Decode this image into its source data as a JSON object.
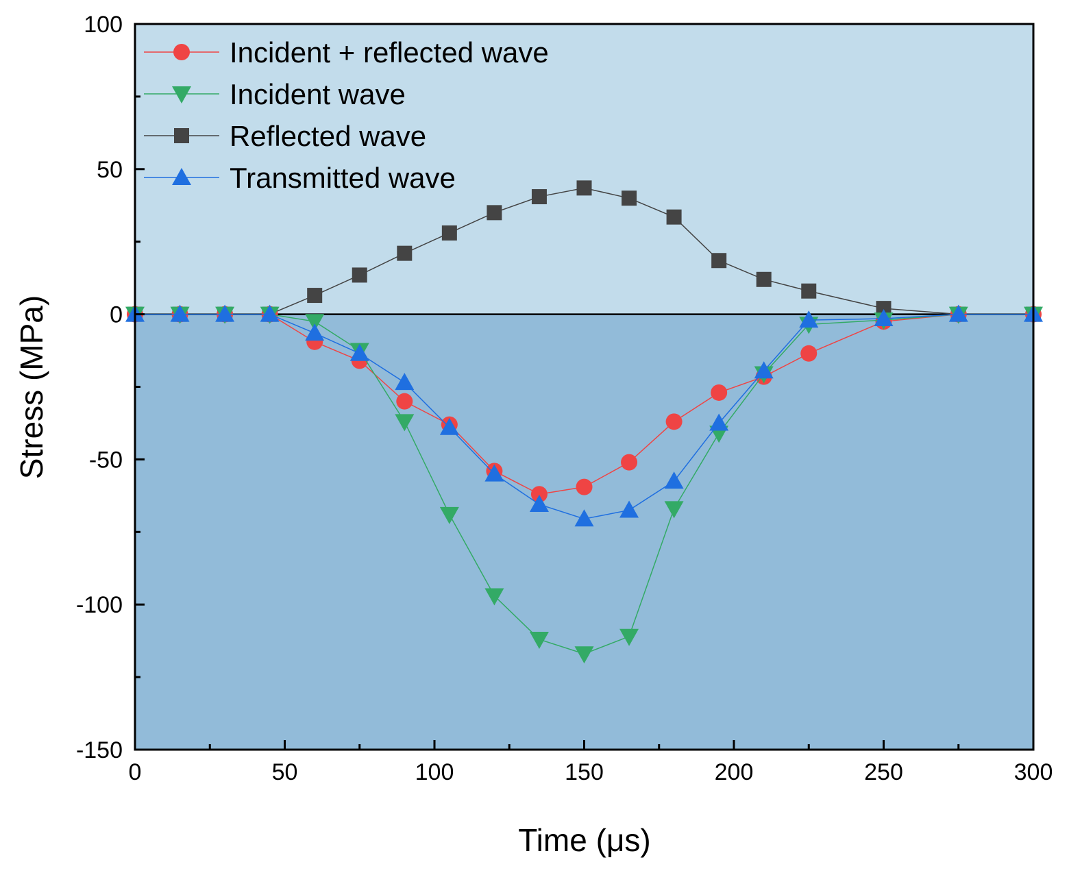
{
  "chart_data": {
    "type": "line",
    "title": "",
    "xlabel": "Time (μs)",
    "ylabel": "Stress (MPa)",
    "xlim": [
      0,
      300
    ],
    "ylim": [
      -150,
      100
    ],
    "xticks": [
      0,
      50,
      100,
      150,
      200,
      250,
      300
    ],
    "yticks": [
      100,
      50,
      0,
      -50,
      -100,
      -150
    ],
    "xtick_labels": [
      "0",
      "50",
      "100",
      "150",
      "200",
      "250",
      "300"
    ],
    "ytick_labels": [
      "100",
      "50",
      "0",
      "-50",
      "-100",
      "-150"
    ],
    "grid": false,
    "legend_position": "top-left",
    "background": {
      "upper_color": "#c2dceb",
      "lower_color": "#92bbd9"
    },
    "series": [
      {
        "name": "Incident + reflected wave",
        "color": "#ef4444",
        "marker": "circle",
        "x": [
          0,
          15,
          30,
          45,
          60,
          75,
          90,
          105,
          120,
          135,
          150,
          165,
          180,
          195,
          210,
          225,
          250,
          275,
          300
        ],
        "y": [
          0,
          0,
          0,
          0,
          -9.5,
          -16,
          -30,
          -38,
          -54,
          -62,
          -59.5,
          -51,
          -37,
          -27,
          -21.5,
          -13.5,
          -2.5,
          0,
          0
        ]
      },
      {
        "name": "Incident wave",
        "color": "#33aa66",
        "marker": "triangle-down",
        "x": [
          0,
          15,
          30,
          45,
          60,
          75,
          90,
          105,
          120,
          135,
          150,
          165,
          180,
          195,
          210,
          225,
          250,
          275,
          300
        ],
        "y": [
          0,
          0,
          0,
          0,
          -2.5,
          -12.5,
          -37,
          -69,
          -97,
          -112,
          -117,
          -111,
          -67,
          -41,
          -20.5,
          -3.5,
          -2,
          0,
          0
        ]
      },
      {
        "name": "Reflected wave",
        "color": "#444444",
        "marker": "square",
        "x": [
          0,
          15,
          30,
          45,
          60,
          75,
          90,
          105,
          120,
          135,
          150,
          165,
          180,
          195,
          210,
          225,
          250,
          275,
          300
        ],
        "y": [
          0,
          0,
          0,
          0,
          6.5,
          13.5,
          21,
          28,
          35,
          40.5,
          43.5,
          40,
          33.5,
          18.5,
          12,
          8,
          2,
          0,
          0
        ]
      },
      {
        "name": "Transmitted wave",
        "color": "#1f6fe0",
        "marker": "triangle-up",
        "x": [
          0,
          15,
          30,
          45,
          60,
          75,
          90,
          105,
          120,
          135,
          150,
          165,
          180,
          195,
          210,
          225,
          250,
          275,
          300
        ],
        "y": [
          0,
          0,
          0,
          0,
          -6.5,
          -13.5,
          -23.5,
          -39,
          -55,
          -65.5,
          -70.5,
          -67.5,
          -57.5,
          -37.5,
          -19.5,
          -2,
          -1.5,
          0,
          0
        ]
      }
    ]
  }
}
